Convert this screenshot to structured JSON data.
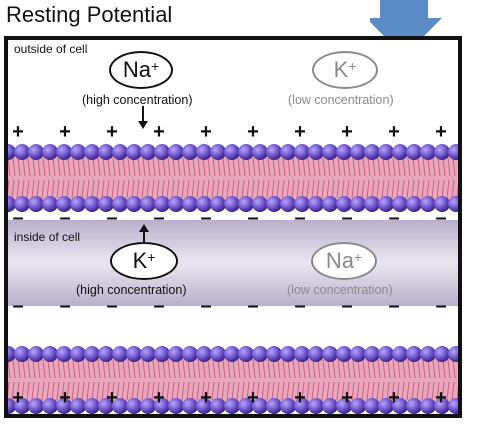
{
  "title": "Resting Potential",
  "outside_label": "outside of cell",
  "inside_label": "inside of cell",
  "ions": {
    "outside_na": {
      "symbol": "Na",
      "charge": "+",
      "concentration": "(high concentration)"
    },
    "outside_k": {
      "symbol": "K",
      "charge": "+",
      "concentration": "(low concentration)"
    },
    "inside_k": {
      "symbol": "K",
      "charge": "+",
      "concentration": "(high concentration)"
    },
    "inside_na": {
      "symbol": "Na",
      "charge": "+",
      "concentration": "(low concentration)"
    }
  },
  "charges": {
    "positive": "+",
    "negative": "–"
  },
  "colors": {
    "membrane_head": "#6a4fc6",
    "membrane_tail": "#e8a7bd",
    "faded": "#8a8a8a",
    "arrow_blue": "#4a7fc0"
  }
}
